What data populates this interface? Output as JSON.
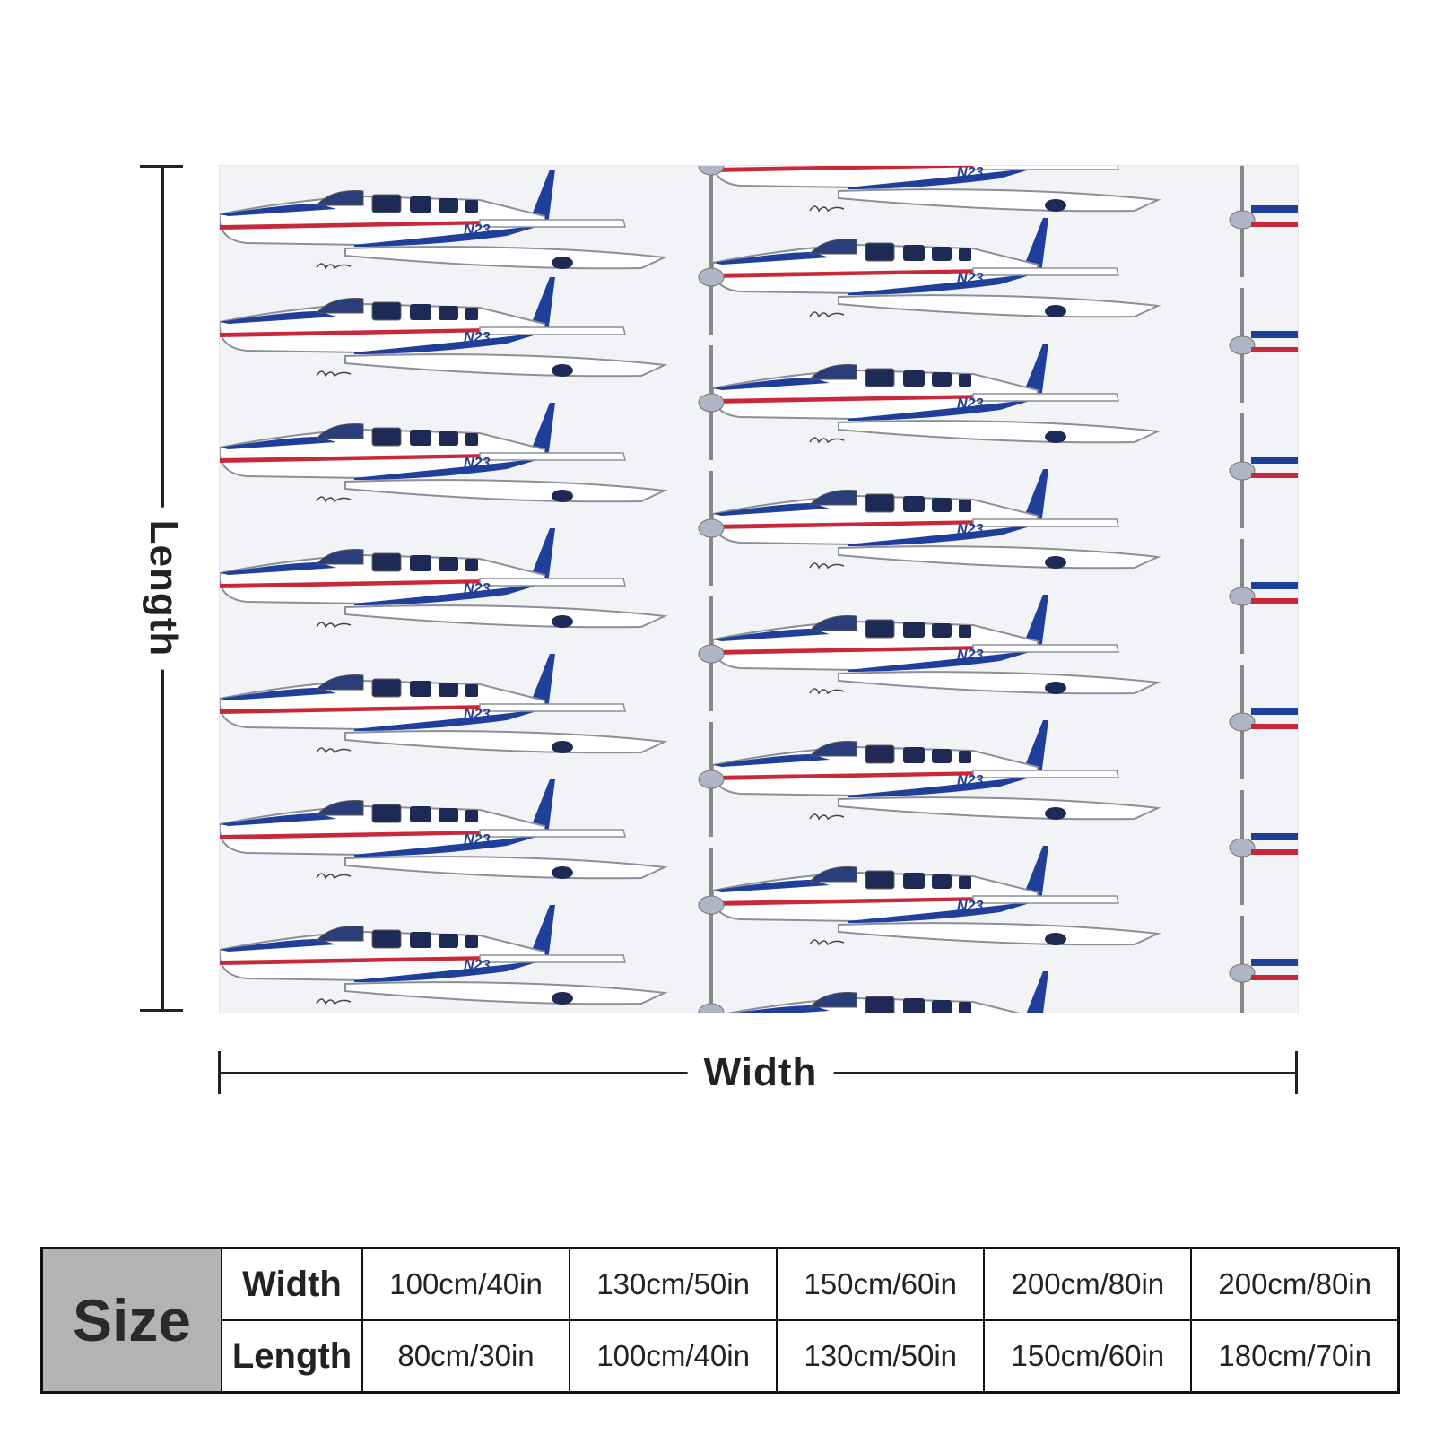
{
  "product": {
    "pattern_icon": "propeller-airplane-icon",
    "colors": {
      "fuselage": "#ffffff",
      "stripe_blue": "#1f3f9a",
      "stripe_red": "#c8283a",
      "background": "#f2f3f6"
    }
  },
  "dimensions": {
    "length_label": "Length",
    "width_label": "Width"
  },
  "size_table": {
    "header": "Size",
    "row_labels": [
      "Width",
      "Length"
    ],
    "widths": [
      "100cm/40in",
      "130cm/50in",
      "150cm/60in",
      "200cm/80in",
      "200cm/80in"
    ],
    "lengths": [
      "80cm/30in",
      "100cm/40in",
      "130cm/50in",
      "150cm/60in",
      "180cm/70in"
    ]
  }
}
